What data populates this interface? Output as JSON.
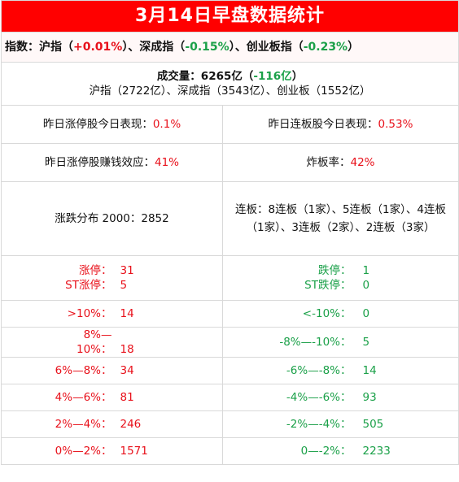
{
  "title": "3月14日早盘数据统计",
  "indices": {
    "label": "指数：",
    "sh_name": "沪指（",
    "sh_value": "+0.01%",
    "sz_name": "）、深成指（",
    "sz_value": "-0.15%",
    "cy_name": "）、创业板指（",
    "cy_value": "-0.23%",
    "end": "）"
  },
  "volume": {
    "label": "成交量：6265亿（",
    "change": "-116亿",
    "end": "）",
    "detail": "沪指（2722亿）、深成指（3543亿）、创业板（1552亿）"
  },
  "stats": {
    "limit_up_perf_label": "昨日涨停股今日表现：",
    "limit_up_perf_value": "0.1%",
    "consec_perf_label": "昨日连板股今日表现：",
    "consec_perf_value": "0.53%",
    "money_effect_label": "昨日涨停股赚钱效应：",
    "money_effect_value": "41%",
    "broken_rate_label": "炸板率：",
    "broken_rate_value": "42%",
    "distribution": "涨跌分布 2000：2852",
    "consecutive": "连板：8连板（1家）、5连板（1家）、4连板（1家）、3连板（2家）、2连板（3家）"
  },
  "limits": {
    "up_label": "涨停：",
    "up_value": "31",
    "st_up_label": "ST涨停：",
    "st_up_value": "5",
    "down_label": "跌停：",
    "down_value": "1",
    "st_down_label": "ST跌停：",
    "st_down_value": "0"
  },
  "buckets": {
    "up": [
      {
        "label": ">10%：",
        "value": "14"
      },
      {
        "label": "8%—10%：",
        "value": "18"
      },
      {
        "label": "6%—8%：",
        "value": "34"
      },
      {
        "label": "4%—6%：",
        "value": "81"
      },
      {
        "label": "2%—4%：",
        "value": "246"
      },
      {
        "label": "0%—2%：",
        "value": "1571"
      }
    ],
    "down": [
      {
        "label": "<-10%：",
        "value": "0"
      },
      {
        "label": "-8%—-10%：",
        "value": "5"
      },
      {
        "label": "-6%—-8%：",
        "value": "14"
      },
      {
        "label": "-4%—-6%：",
        "value": "93"
      },
      {
        "label": "-2%—-4%：",
        "value": "505"
      },
      {
        "label": "0—-2%：",
        "value": "2233"
      }
    ]
  },
  "colors": {
    "title_bg": "#ff0000",
    "up": "#e8101a",
    "down": "#1aa048"
  }
}
